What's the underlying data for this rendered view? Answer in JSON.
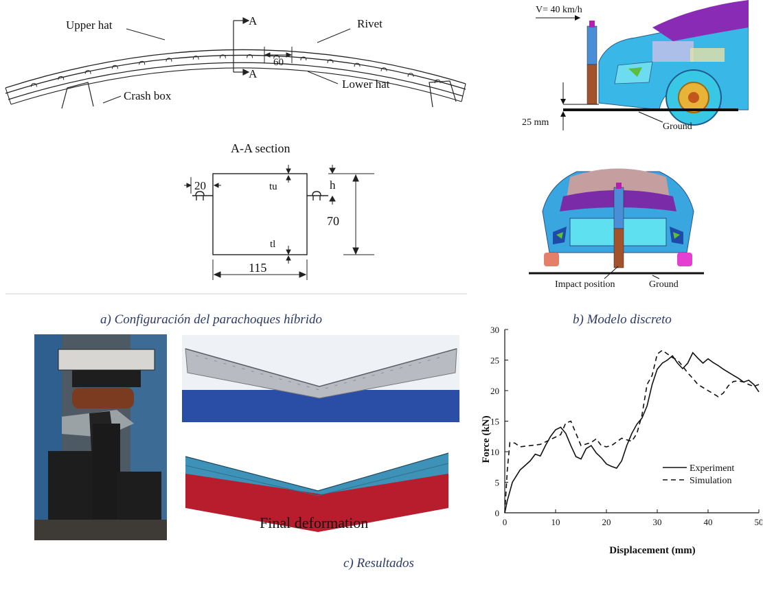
{
  "panel_a": {
    "labels": {
      "upper_hat": "Upper hat",
      "rivet": "Rivet",
      "lower_hat": "Lower hat",
      "crash_box": "Crash box",
      "section_mark_top": "A",
      "section_mark_bottom": "A",
      "rivet_pitch": "60"
    },
    "section": {
      "title": "A-A section",
      "flange_width": "20",
      "upper_thickness": "tu",
      "lower_thickness": "tl",
      "hat_height_symbol": "h",
      "total_height": "70",
      "width": "115"
    },
    "caption": "a) Configuración del parachoques híbrido"
  },
  "panel_b": {
    "velocity": "V= 40 km/h",
    "clearance": "25 mm",
    "ground_side": "Ground",
    "impact_position": "Impact position",
    "ground_front": "Ground",
    "caption": "b) Modelo discreto"
  },
  "panel_c": {
    "final_deformation": "Final deformation",
    "caption": "c) Resultados"
  },
  "colors": {
    "caption": "#2b3a67",
    "fem_blue": "#3e92b8",
    "fem_red": "#b81d2e",
    "car_cyan": "#39b7e6",
    "car_purple": "#8a2bb5"
  },
  "chart_data": {
    "type": "line",
    "xlabel": "Displacement (mm)",
    "ylabel": "Force (kN)",
    "xlim": [
      0,
      50
    ],
    "ylim": [
      0,
      30
    ],
    "xticks": [
      0,
      10,
      20,
      30,
      40,
      50
    ],
    "yticks": [
      0,
      5,
      10,
      15,
      20,
      25,
      30
    ],
    "legend_position": "right",
    "series": [
      {
        "name": "Experiment",
        "style": "solid",
        "points": [
          [
            0,
            0
          ],
          [
            0.5,
            2
          ],
          [
            1.5,
            5
          ],
          [
            3,
            7
          ],
          [
            5,
            8.5
          ],
          [
            6,
            9.6
          ],
          [
            7,
            9.3
          ],
          [
            8,
            11
          ],
          [
            9,
            12.5
          ],
          [
            10,
            13.6
          ],
          [
            11,
            14
          ],
          [
            12,
            13
          ],
          [
            13,
            11
          ],
          [
            14,
            9.2
          ],
          [
            15,
            8.8
          ],
          [
            16,
            10.5
          ],
          [
            17,
            11
          ],
          [
            18,
            9.8
          ],
          [
            19,
            9
          ],
          [
            20,
            8
          ],
          [
            21,
            7.6
          ],
          [
            22,
            7.3
          ],
          [
            23,
            8.5
          ],
          [
            24,
            11
          ],
          [
            25,
            13
          ],
          [
            26,
            14.5
          ],
          [
            27,
            15.5
          ],
          [
            28,
            17.5
          ],
          [
            29,
            21
          ],
          [
            30,
            23.5
          ],
          [
            31,
            24.5
          ],
          [
            32,
            25
          ],
          [
            33,
            25.7
          ],
          [
            34,
            24.5
          ],
          [
            35,
            23.6
          ],
          [
            36,
            24.5
          ],
          [
            37,
            26.2
          ],
          [
            38,
            25.3
          ],
          [
            39,
            24.5
          ],
          [
            40,
            25.2
          ],
          [
            41,
            24.6
          ],
          [
            42,
            24.1
          ],
          [
            43,
            23.5
          ],
          [
            44,
            23
          ],
          [
            45,
            22.5
          ],
          [
            46,
            22
          ],
          [
            47,
            21.4
          ],
          [
            48,
            21.7
          ],
          [
            49,
            21
          ],
          [
            50,
            19.8
          ]
        ]
      },
      {
        "name": "Simulation",
        "style": "dashed",
        "points": [
          [
            0,
            0
          ],
          [
            0.5,
            7
          ],
          [
            1,
            11.5
          ],
          [
            2,
            11.4
          ],
          [
            3,
            10.8
          ],
          [
            5,
            11
          ],
          [
            7,
            11.2
          ],
          [
            9,
            12
          ],
          [
            11,
            12.8
          ],
          [
            12,
            14.7
          ],
          [
            13,
            15
          ],
          [
            14,
            13
          ],
          [
            15,
            11
          ],
          [
            17,
            11.5
          ],
          [
            18,
            12.1
          ],
          [
            19,
            11
          ],
          [
            20,
            10.8
          ],
          [
            21,
            11
          ],
          [
            23,
            12.2
          ],
          [
            25,
            11.7
          ],
          [
            26,
            13
          ],
          [
            27,
            16
          ],
          [
            28,
            21
          ],
          [
            29,
            22.5
          ],
          [
            30,
            26
          ],
          [
            31,
            26.6
          ],
          [
            32,
            26
          ],
          [
            33,
            25.4
          ],
          [
            34,
            25
          ],
          [
            35,
            24
          ],
          [
            36,
            22.9
          ],
          [
            37,
            22
          ],
          [
            38,
            21
          ],
          [
            39,
            20.5
          ],
          [
            40,
            20
          ],
          [
            41,
            19.5
          ],
          [
            42,
            19
          ],
          [
            43,
            19.6
          ],
          [
            44,
            20.8
          ],
          [
            45,
            21.5
          ],
          [
            46,
            21.6
          ],
          [
            47,
            21.4
          ],
          [
            48,
            21
          ],
          [
            49,
            20.7
          ],
          [
            50,
            21
          ]
        ]
      }
    ]
  }
}
